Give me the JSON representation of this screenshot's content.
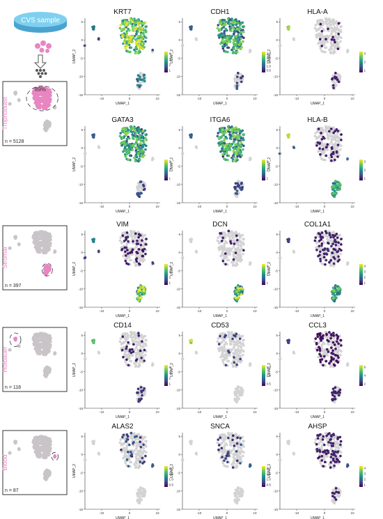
{
  "sample": {
    "label": "CVS sample"
  },
  "colors": {
    "dish_fill": "#76c9ea",
    "dish_rim": "#4aa3cf",
    "pink": "#e886c2",
    "cell_gray": "#c9c4c8",
    "umap_gray": "#d3d3d3",
    "viridis": [
      "#440154",
      "#3b528b",
      "#21918c",
      "#5ec962",
      "#fde725"
    ]
  },
  "axes": {
    "xlabel": "UMAP_1",
    "ylabel": "UMAP_2",
    "xlim": [
      -16,
      11
    ],
    "ylim": [
      -15,
      6
    ],
    "xticks": [
      -10,
      0,
      10
    ],
    "yticks": [
      5,
      0,
      -5,
      -10,
      -15
    ]
  },
  "chart_data": {
    "type": "scatter",
    "cell_types": [
      {
        "name": "Trophoblast",
        "count_label": "n = 5128",
        "percent_label": "89%",
        "highlight": "main-cluster"
      },
      {
        "name": "Stromal",
        "count_label": "n = 397",
        "highlight": "lower-cluster"
      },
      {
        "name": "Hofbauer",
        "count_label": "n = 118",
        "highlight": "left-cluster"
      },
      {
        "name": "Blood",
        "count_label": "n = 87",
        "highlight": "small-right-cluster"
      }
    ],
    "panels": [
      {
        "gene": "KRT7",
        "row": 0,
        "pattern": "tropho-strong",
        "legend_ticks": [
          "4",
          "3",
          "2",
          "1"
        ]
      },
      {
        "gene": "CDH1",
        "row": 0,
        "pattern": "tropho-mid",
        "legend_ticks": [
          "2.5",
          "2.0",
          "1.5",
          "1.0",
          "0.5"
        ]
      },
      {
        "gene": "HLA-A",
        "row": 0,
        "pattern": "hla",
        "legend_ticks": [
          "3",
          "2",
          "1"
        ]
      },
      {
        "gene": "GATA3",
        "row": 1,
        "pattern": "tropho-mid",
        "legend_ticks": [
          "3",
          "2",
          "1"
        ]
      },
      {
        "gene": "ITGA6",
        "row": 1,
        "pattern": "tropho-mid",
        "legend_ticks": [
          "3",
          "2",
          "1"
        ]
      },
      {
        "gene": "HLA-B",
        "row": 1,
        "pattern": "hla-b",
        "legend_ticks": [
          "3",
          "2",
          "1"
        ]
      },
      {
        "gene": "VIM",
        "row": 2,
        "pattern": "stromal",
        "legend_ticks": [
          "4",
          "3",
          "2",
          "1"
        ]
      },
      {
        "gene": "DCN",
        "row": 2,
        "pattern": "stromal-sparse",
        "legend_ticks": [
          "3",
          "2",
          "1"
        ]
      },
      {
        "gene": "COL1A1",
        "row": 2,
        "pattern": "stromal-col",
        "legend_ticks": [
          "4",
          "3",
          "2",
          "1"
        ]
      },
      {
        "gene": "CD14",
        "row": 3,
        "pattern": "hofbauer",
        "legend_ticks": [
          "4",
          "3",
          "2",
          "1"
        ]
      },
      {
        "gene": "CD53",
        "row": 3,
        "pattern": "hofbauer-sparse",
        "legend_ticks": [
          "1.5",
          "1.0",
          "0.5"
        ]
      },
      {
        "gene": "CCL3",
        "row": 3,
        "pattern": "ccl3",
        "legend_ticks": [
          "6",
          "4",
          "2"
        ]
      },
      {
        "gene": "ALAS2",
        "row": 4,
        "pattern": "blood",
        "legend_ticks": [
          "2.0",
          "1.5",
          "1.0",
          "0.5"
        ]
      },
      {
        "gene": "SNCA",
        "row": 4,
        "pattern": "blood",
        "legend_ticks": [
          "2.0",
          "1.5",
          "1.0",
          "0.5"
        ]
      },
      {
        "gene": "AHSP",
        "row": 4,
        "pattern": "blood-dense",
        "legend_ticks": [
          "4",
          "3",
          "2",
          "1"
        ]
      }
    ]
  }
}
